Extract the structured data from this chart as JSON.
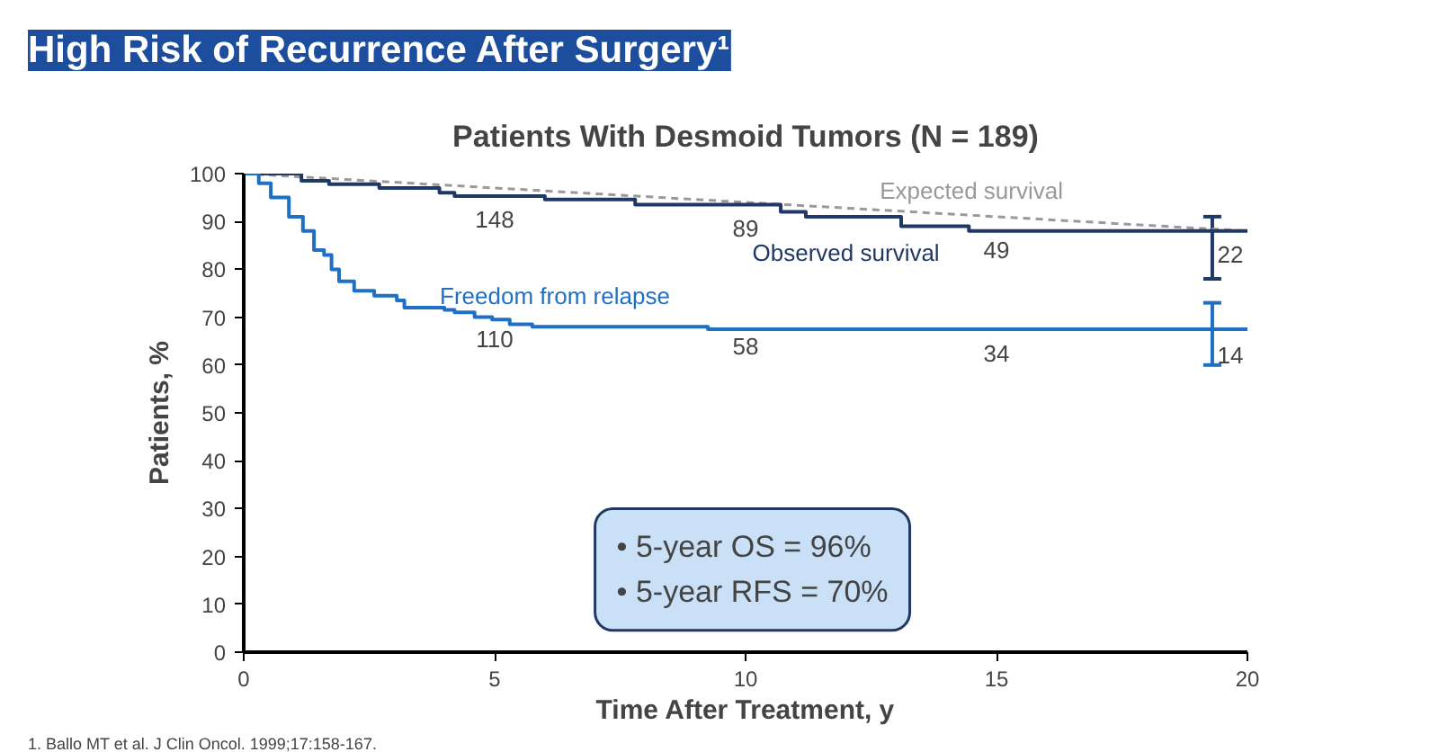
{
  "chart_data": {
    "type": "step",
    "title": "High Risk of Recurrence After Surgery¹",
    "subtitle": "Patients With Desmoid Tumors (N = 189)",
    "xlabel": "Time After Treatment, y",
    "ylabel": "Patients, %",
    "xlim": [
      0,
      20
    ],
    "ylim": [
      0,
      100
    ],
    "xticks": [
      0,
      5,
      10,
      15,
      20
    ],
    "yticks": [
      0,
      10,
      20,
      30,
      40,
      50,
      60,
      70,
      80,
      90,
      100
    ],
    "grid": false,
    "legend": false,
    "marker": "none",
    "series": [
      {
        "name": "Expected survival",
        "type": "line",
        "line_style": "dashed",
        "color": "#999999",
        "x": [
          0,
          20
        ],
        "values": [
          100,
          88
        ]
      },
      {
        "name": "Observed survival",
        "color": "#1f3864",
        "x": [
          0,
          1.15,
          1.7,
          2.7,
          3.9,
          4.2,
          6.0,
          7.8,
          10.7,
          11.2,
          13.1,
          14.45,
          19.3,
          20
        ],
        "values": [
          100,
          98.5,
          97.8,
          97,
          96,
          95.3,
          94.6,
          93.5,
          92,
          91,
          89,
          88,
          88,
          88
        ],
        "errors": [
          null,
          null,
          null,
          null,
          null,
          null,
          null,
          null,
          null,
          null,
          null,
          null,
          [
            78,
            91
          ],
          null
        ]
      },
      {
        "name": "Freedom from relapse",
        "color": "#1f6fc4",
        "x": [
          0,
          0.3,
          0.54,
          0.9,
          1.18,
          1.4,
          1.6,
          1.75,
          1.9,
          2.2,
          2.6,
          3.05,
          3.2,
          4.0,
          4.2,
          4.6,
          4.95,
          5.3,
          5.75,
          9.25,
          19.3,
          20
        ],
        "values": [
          100,
          98,
          95,
          91,
          88,
          84,
          83,
          80,
          77.5,
          75.5,
          74.5,
          73.5,
          72,
          71.5,
          71,
          70,
          69.5,
          68.5,
          68,
          67.5,
          67.5,
          67.5
        ],
        "errors": [
          null,
          null,
          null,
          null,
          null,
          null,
          null,
          null,
          null,
          null,
          null,
          null,
          null,
          null,
          null,
          null,
          null,
          null,
          null,
          null,
          [
            60,
            73
          ],
          null
        ]
      }
    ],
    "annotations": [
      "148",
      "89",
      "49",
      "22",
      "110",
      "58",
      "34",
      "14",
      "• 5-year OS = 96%\n• 5-year RFS = 70%",
      "1. Ballo MT et al. J Clin Oncol. 1999;17:158-167."
    ]
  }
}
